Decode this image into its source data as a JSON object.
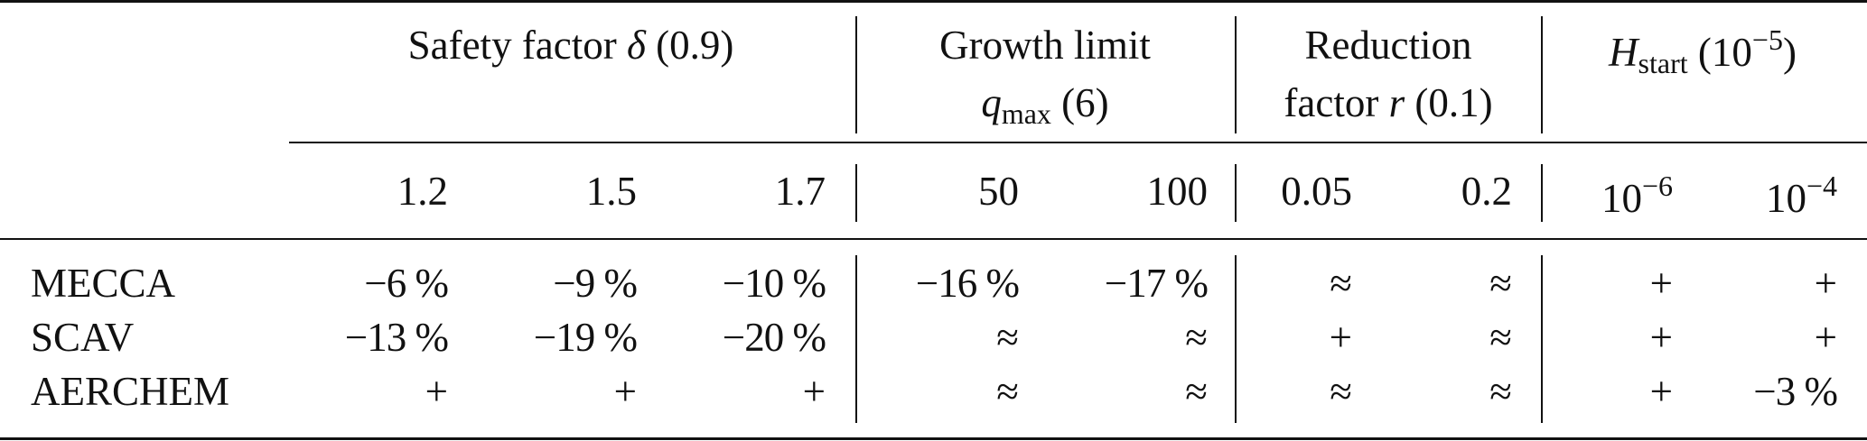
{
  "table": {
    "groups": {
      "safety": {
        "label": "Safety factor",
        "symbol": "δ",
        "default": "(0.9)"
      },
      "growth": {
        "line1": "Growth limit",
        "symbol": "q",
        "symbol_sub": "max",
        "default": "(6)"
      },
      "reduction": {
        "line1": "Reduction",
        "line2": "factor",
        "symbol": "r",
        "default": "(0.1)"
      },
      "hstart": {
        "symbol": "H",
        "symbol_sub": "start",
        "default_open": "(10",
        "default_exp": "−5",
        "default_close": ")"
      }
    },
    "subheaders": {
      "safety": [
        "1.2",
        "1.5",
        "1.7"
      ],
      "growth": [
        "50",
        "100"
      ],
      "reduction": [
        "0.05",
        "0.2"
      ],
      "hstart": [
        {
          "base": "10",
          "exp": "−6"
        },
        {
          "base": "10",
          "exp": "−4"
        }
      ]
    },
    "rows": [
      {
        "model": "MECCA",
        "cells": [
          "−6 %",
          "−9 %",
          "−10 %",
          "−16 %",
          "−17 %",
          "≈",
          "≈",
          "+",
          "+"
        ]
      },
      {
        "model": "SCAV",
        "cells": [
          "−13 %",
          "−19 %",
          "−20 %",
          "≈",
          "≈",
          "+",
          "≈",
          "+",
          "+"
        ]
      },
      {
        "model": "AERCHEM",
        "cells": [
          "+",
          "+",
          "+",
          "≈",
          "≈",
          "≈",
          "≈",
          "+",
          "−3 %"
        ]
      }
    ]
  }
}
